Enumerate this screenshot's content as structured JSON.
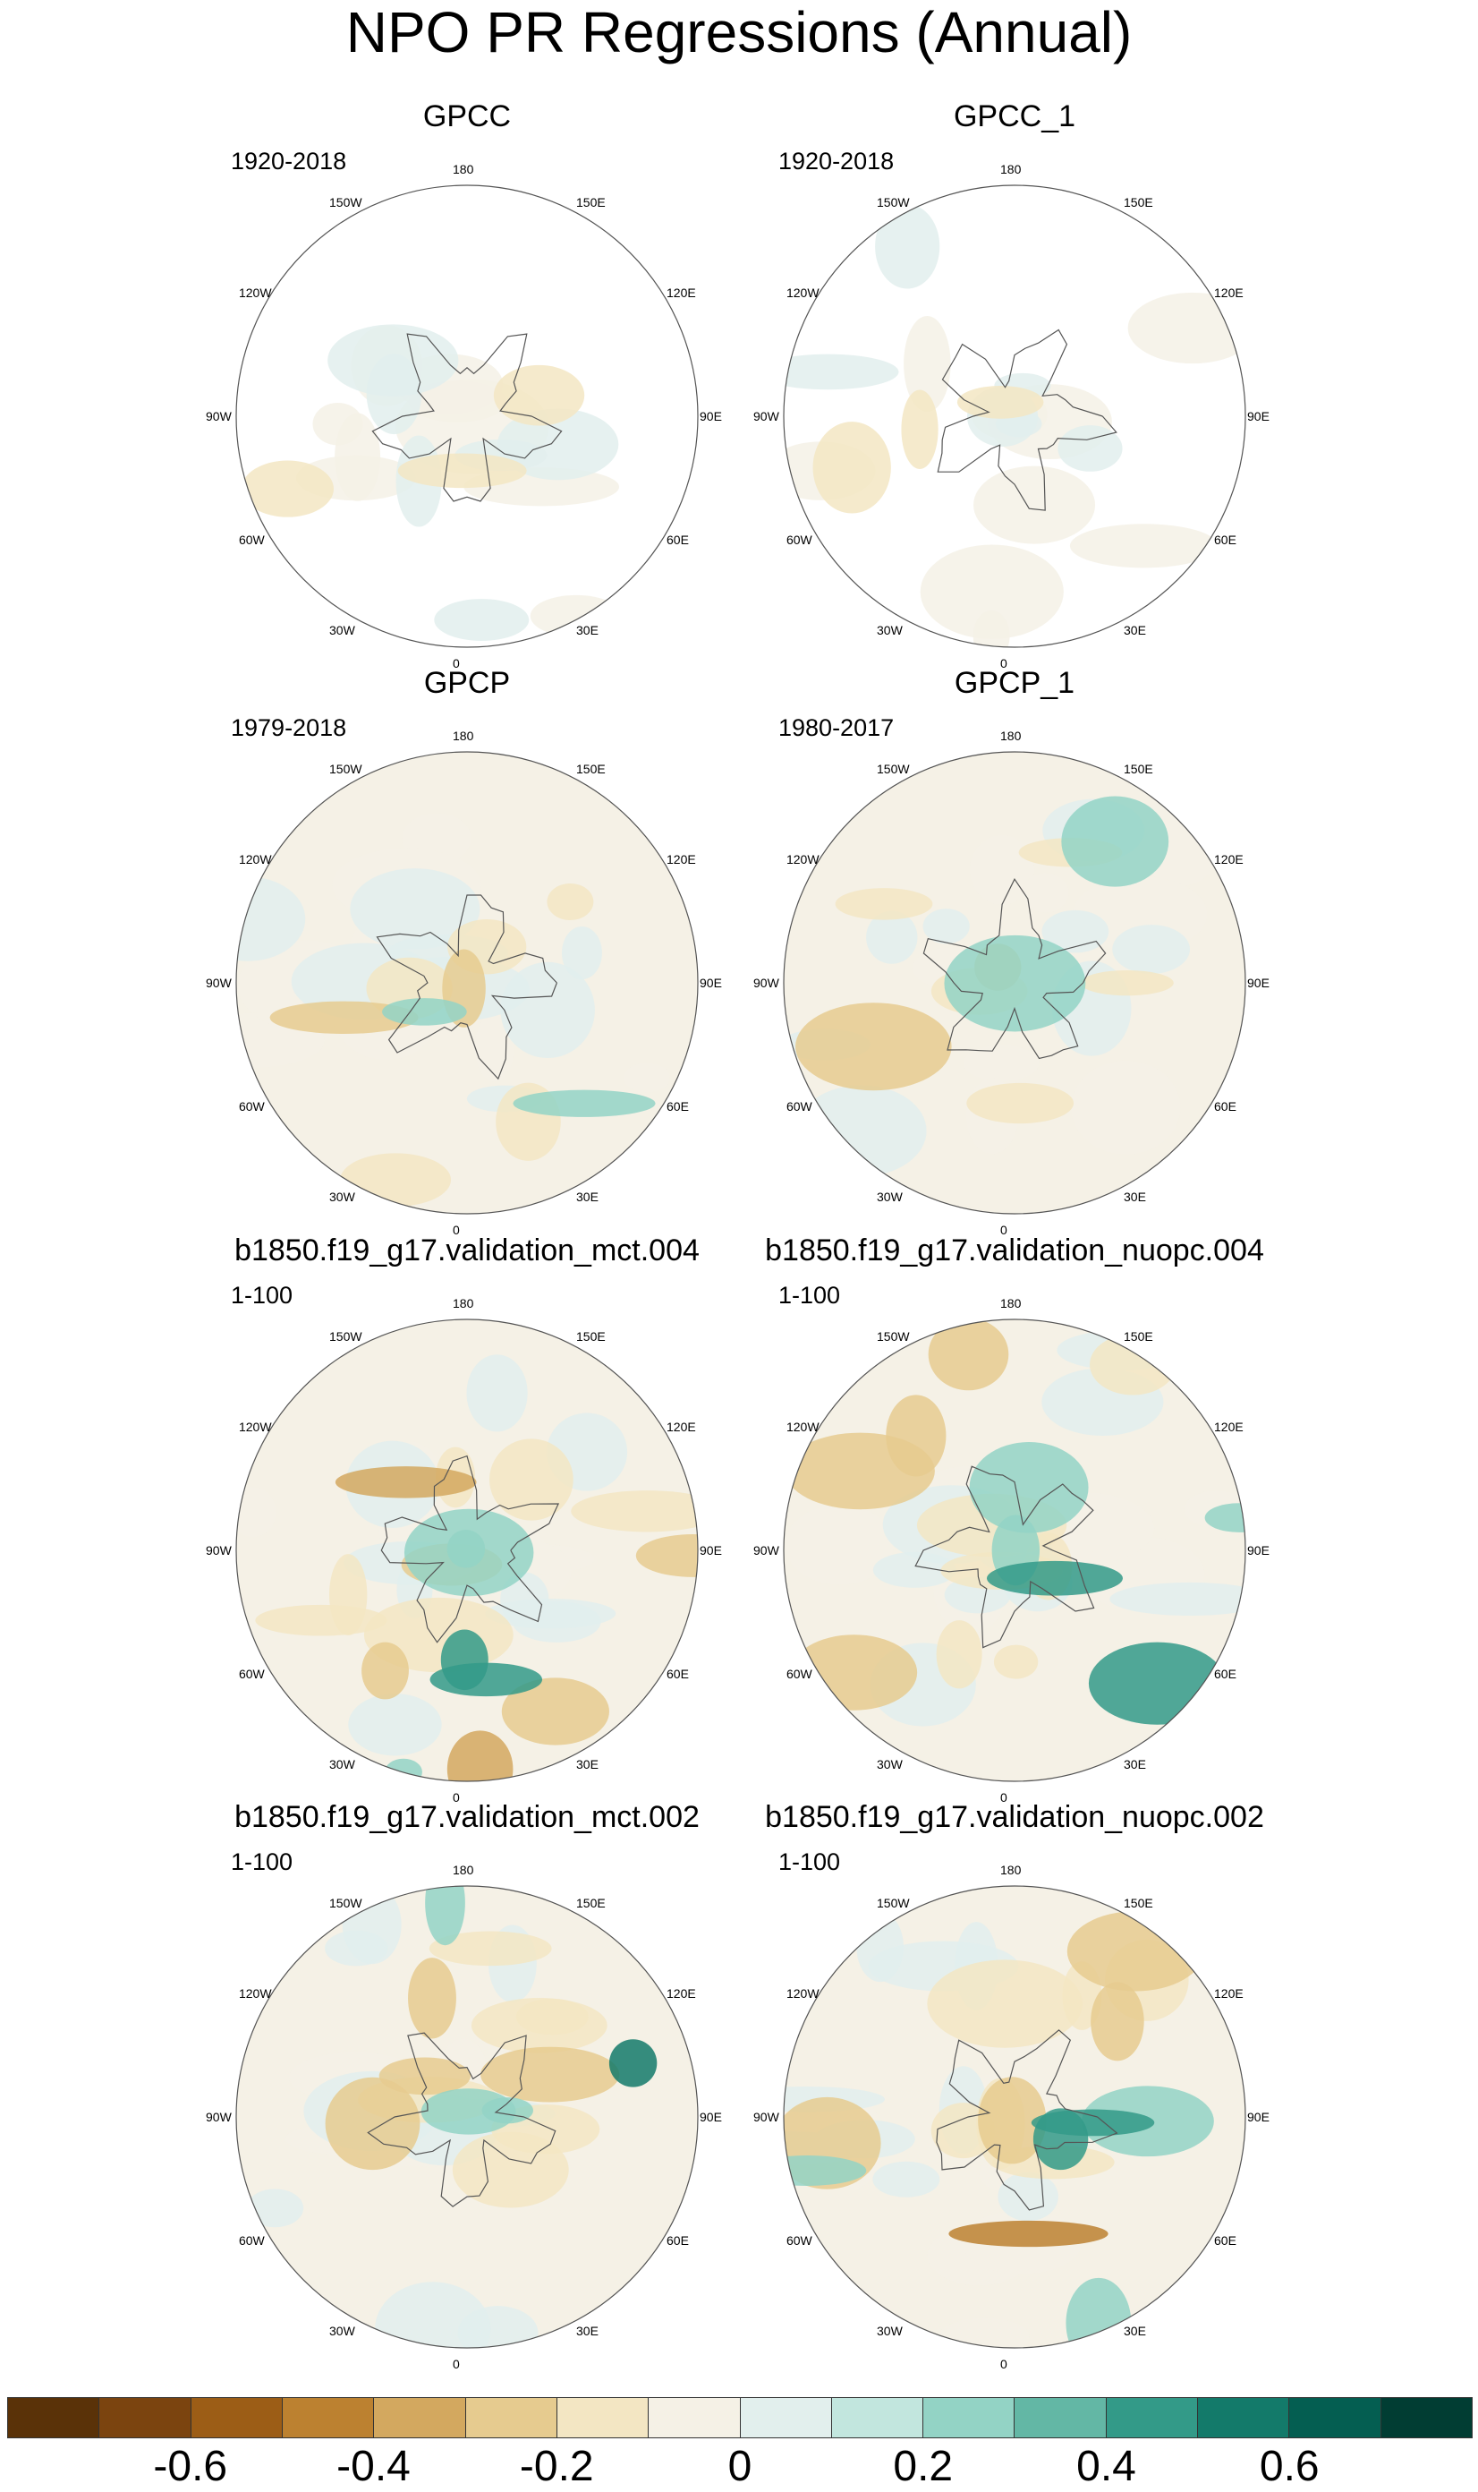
{
  "title": "NPO PR Regressions (Annual)",
  "panels": [
    {
      "title": "GPCC",
      "period": "1920-2018"
    },
    {
      "title": "GPCC_1",
      "period": "1920-2018"
    },
    {
      "title": "GPCP",
      "period": "1979-2018"
    },
    {
      "title": "GPCP_1",
      "period": "1980-2017"
    },
    {
      "title": "b1850.f19_g17.validation_mct.004",
      "period": "1-100"
    },
    {
      "title": "b1850.f19_g17.validation_nuopc.004",
      "period": "1-100"
    },
    {
      "title": "b1850.f19_g17.validation_mct.002",
      "period": "1-100"
    },
    {
      "title": "b1850.f19_g17.validation_nuopc.002",
      "period": "1-100"
    }
  ],
  "longitude_labels": [
    "180",
    "150E",
    "120E",
    "90E",
    "60E",
    "30E",
    "0",
    "30W",
    "60W",
    "90W",
    "120W",
    "150W"
  ],
  "colorbar": {
    "colors": [
      "#5a3208",
      "#7b440f",
      "#9c5d16",
      "#bc8130",
      "#d3a85f",
      "#e6cb8f",
      "#f3e6c3",
      "#f5f1e6",
      "#e2efed",
      "#c2e6de",
      "#93d3c5",
      "#63b7a5",
      "#339a88",
      "#137a6a",
      "#045e51",
      "#013d33"
    ],
    "labels": [
      "-0.6",
      "-0.4",
      "-0.2",
      "0",
      "0.2",
      "0.4",
      "0.6"
    ]
  }
}
